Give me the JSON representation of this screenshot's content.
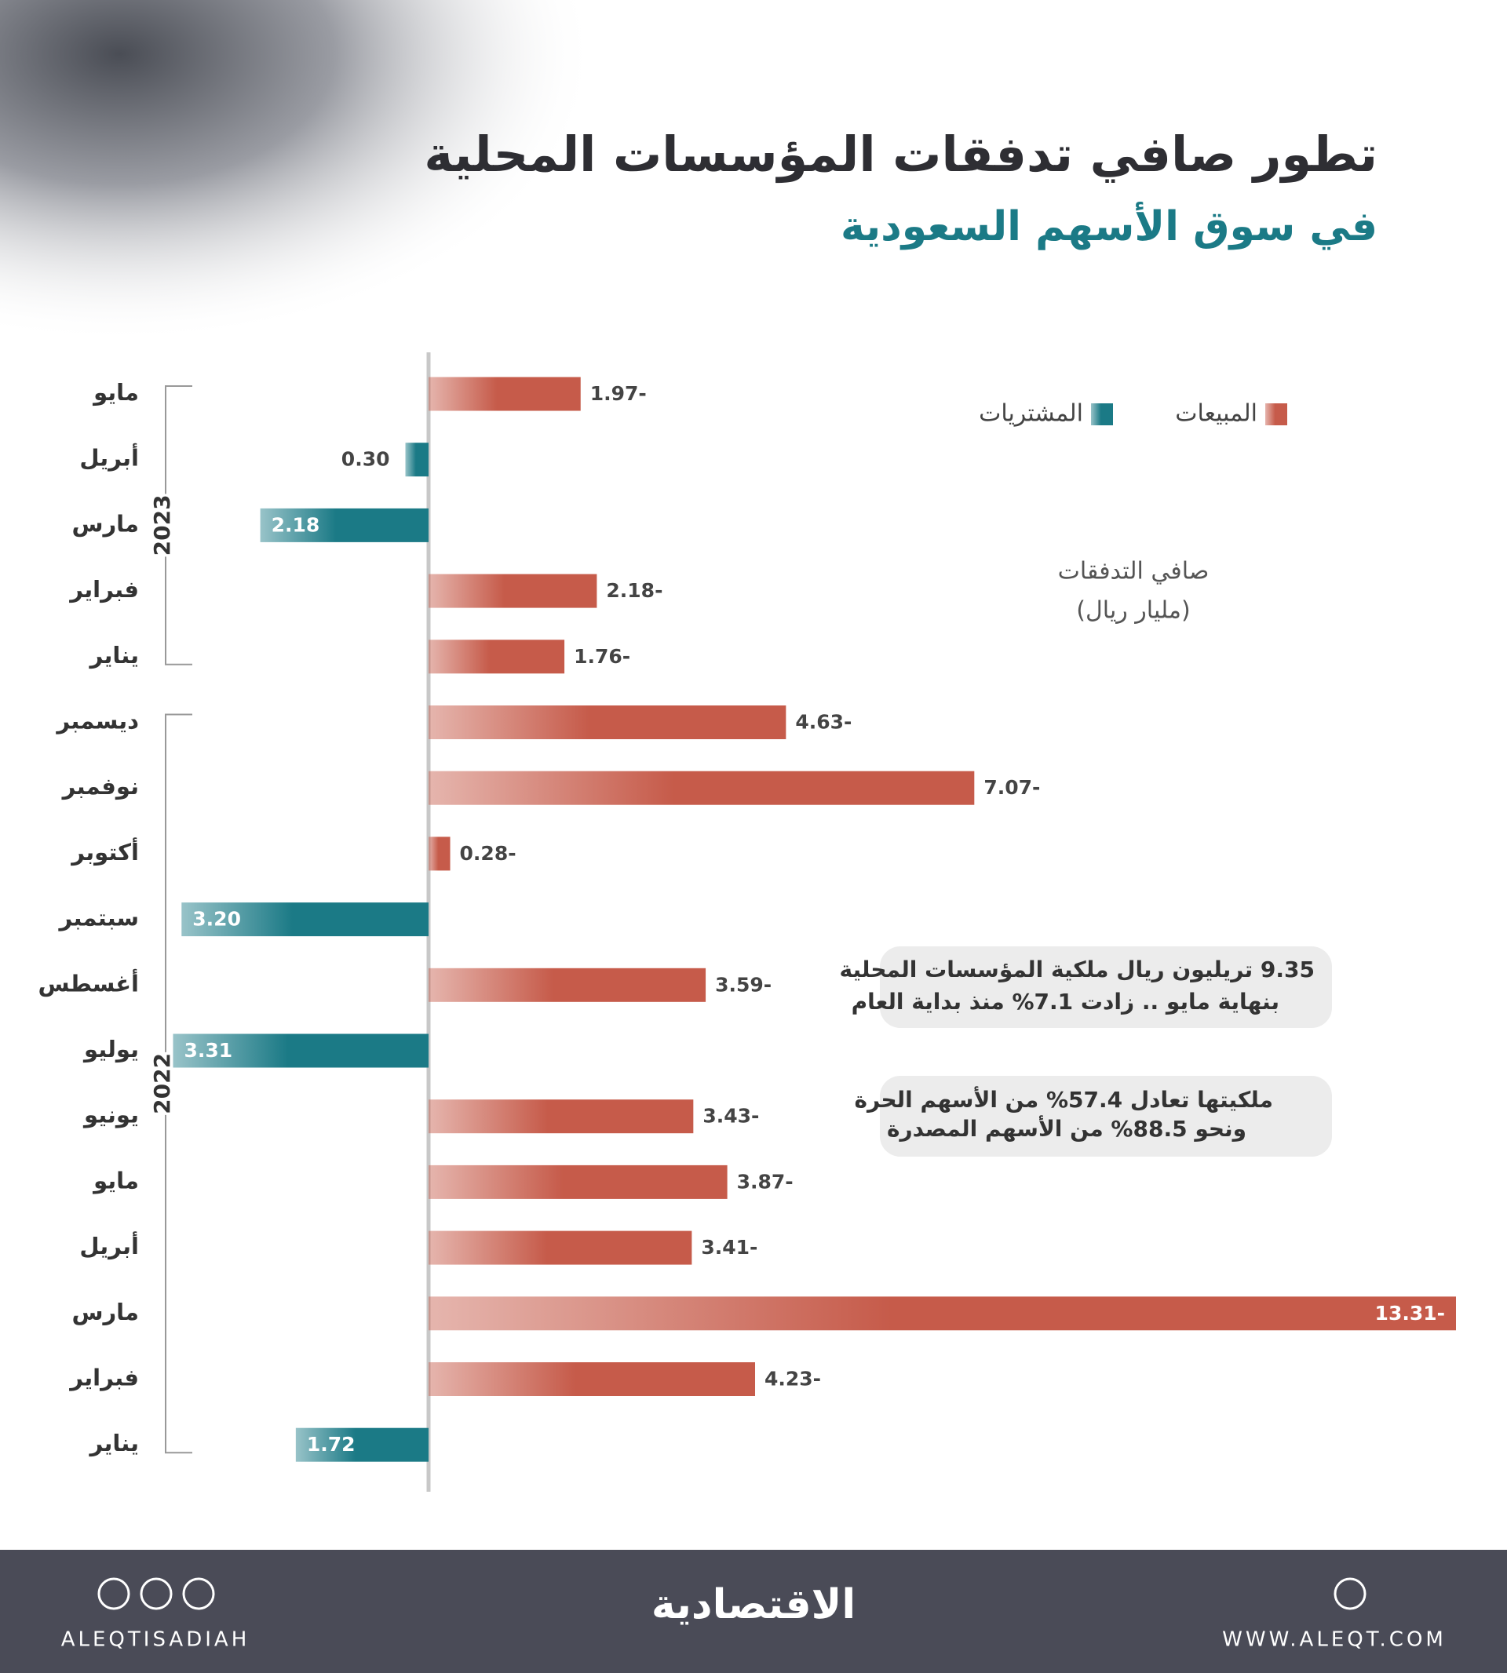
{
  "chart_data": {
    "type": "diverging-bar",
    "title": "تطور صافي تدفقات المؤسسات المحلية",
    "subtitle": "في سوق الأسهم السعودية",
    "axis_label": [
      "صافي التدفقات",
      "(مليار ريال)"
    ],
    "groups": [
      {
        "label": "2023",
        "categories": [
          "مايو",
          "أبريل",
          "مارس",
          "فبراير",
          "يناير"
        ]
      },
      {
        "label": "2022",
        "categories": [
          "ديسمبر",
          "نوفمبر",
          "أكتوبر",
          "سبتمبر",
          "أغسطس",
          "يوليو",
          "يونيو",
          "مايو",
          "أبريل",
          "مارس",
          "فبراير",
          "يناير"
        ]
      }
    ],
    "series": [
      {
        "name": "المبيعات",
        "color": "#c65b4a",
        "values": [
          -1.97,
          null,
          null,
          -2.18,
          -1.76,
          -4.63,
          -7.07,
          -0.28,
          null,
          -3.59,
          null,
          -3.43,
          -3.87,
          -3.41,
          -13.31,
          -4.23,
          null
        ],
        "value_labels": [
          "1.97-",
          null,
          null,
          "2.18-",
          "1.76-",
          "4.63-",
          "7.07-",
          "0.28-",
          null,
          "3.59-",
          null,
          "3.43-",
          "3.87-",
          "3.41-",
          "13.31-",
          "4.23-",
          null
        ]
      },
      {
        "name": "المشتريات",
        "color": "#1b7a86",
        "values": [
          null,
          0.3,
          2.18,
          null,
          null,
          null,
          null,
          null,
          3.2,
          null,
          3.31,
          null,
          null,
          null,
          null,
          null,
          1.72
        ],
        "value_labels": [
          null,
          "0.30",
          "2.18",
          null,
          null,
          null,
          null,
          null,
          "3.20",
          null,
          "3.31",
          null,
          null,
          null,
          null,
          null,
          "1.72"
        ]
      }
    ],
    "legend": "top-right",
    "annotations": [
      [
        "9.35 تريليون ريال ملكية المؤسسات المحلية",
        "بنهاية مايو .. زادت 7.1% منذ بداية العام"
      ],
      [
        "ملكيتها تعادل 57.4% من الأسهم الحرة",
        "ونحو 88.5% من الأسهم المصدرة"
      ]
    ]
  },
  "footer": {
    "brand": "الاقتصادية",
    "handle": "ALEQTISADIAH",
    "website": "WWW.ALEQT.COM"
  }
}
